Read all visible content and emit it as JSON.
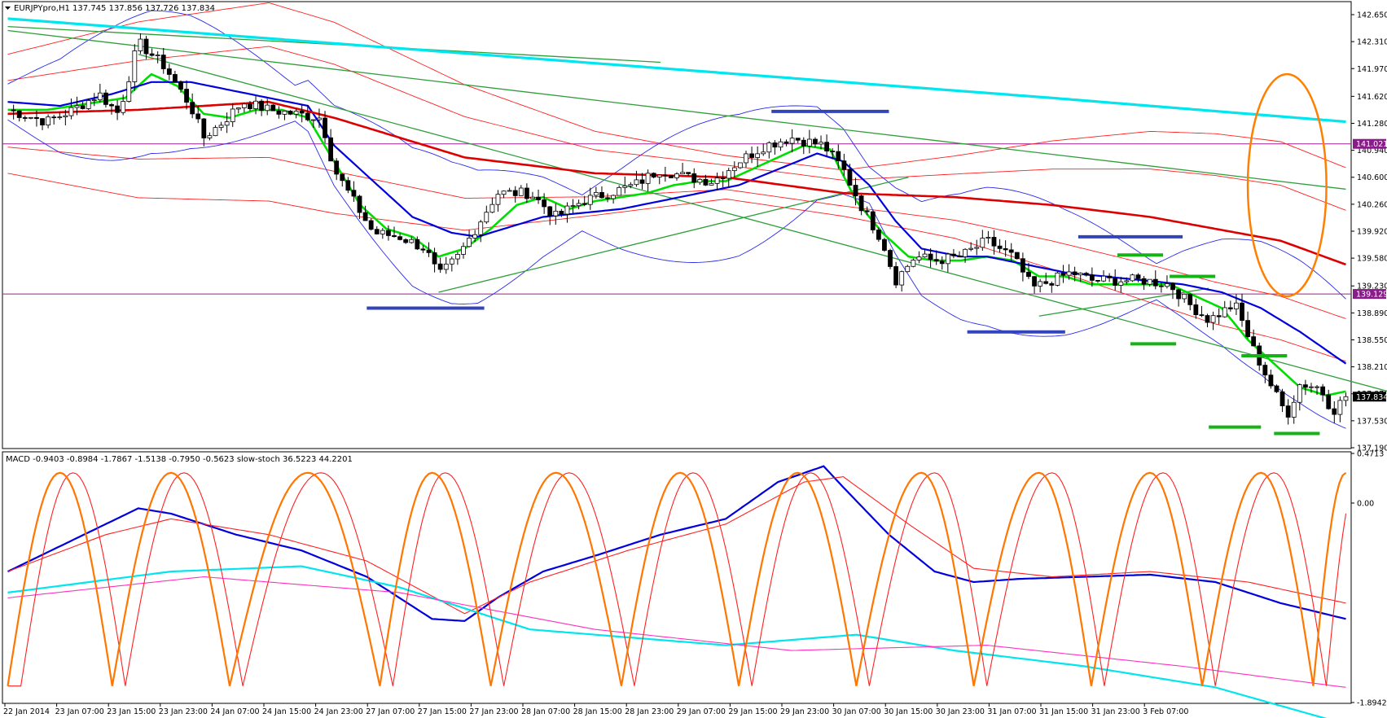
{
  "colors": {
    "background": "#ffffff",
    "bull_candle": "#ffffff",
    "bear_candle": "#000000",
    "ema_fast": "#00dd00",
    "ema_mid": "#0000dd",
    "ema_slow": "#dd0000",
    "ema_long": "#00e5ee",
    "bollinger": "#2a2aee",
    "envelope": "#ff2020",
    "trendline": "#2e9e3a",
    "hline": "#9b1f8f",
    "hline_badge": "#8b1a8b",
    "price_badge": "#000000",
    "support_marks": "#3344bb",
    "green_marks": "#15b315",
    "ellipse": "#ff8000",
    "macd_main": "#0000dd",
    "macd_signal": "#ff2020",
    "stoch_main": "#ff7700",
    "stoch_signal": "#ff2020",
    "slow_ma_cyan": "#00e5ee",
    "slow_ma_magenta": "#ff30c0"
  },
  "main_panel": {
    "header_text": "EURJPYpro,H1  137.745 137.856 137.726 137.834",
    "header_icon": "triangle-down-icon",
    "price_label": "137.834",
    "hlines": [
      {
        "value": 141.021,
        "label": "141.021"
      },
      {
        "value": 139.129,
        "label": "139.129"
      }
    ]
  },
  "indicator_panel": {
    "header_text": "MACD -0.9403 -0.8984 -1.7867 -1.5138 -0.7950 -0.5623  slow-stoch 36.5223 44.2201"
  },
  "chart_data": [
    {
      "type": "candlestick",
      "title": "EURJPYpro,H1",
      "ylim": [
        137.19,
        142.65
      ],
      "yticks": [
        "142.650",
        "142.310",
        "141.970",
        "141.620",
        "141.280",
        "140.940",
        "140.600",
        "140.260",
        "139.920",
        "139.580",
        "139.230",
        "138.890",
        "138.550",
        "138.210",
        "137.870",
        "137.530",
        "137.190"
      ],
      "x_tick_labels": [
        "22 Jan 2014",
        "23 Jan 07:00",
        "23 Jan 15:00",
        "23 Jan 23:00",
        "24 Jan 07:00",
        "24 Jan 15:00",
        "24 Jan 23:00",
        "27 Jan 07:00",
        "27 Jan 15:00",
        "27 Jan 23:00",
        "28 Jan 07:00",
        "28 Jan 15:00",
        "28 Jan 23:00",
        "29 Jan 07:00",
        "29 Jan 15:00",
        "29 Jan 23:00",
        "30 Jan 07:00",
        "30 Jan 15:00",
        "30 Jan 23:00",
        "31 Jan 07:00",
        "31 Jan 15:00",
        "31 Jan 23:00",
        "3 Feb 07:00"
      ],
      "close_path": [
        [
          0,
          141.45
        ],
        [
          6,
          141.3
        ],
        [
          10,
          141.45
        ],
        [
          14,
          141.65
        ],
        [
          17,
          141.4
        ],
        [
          20,
          142.3
        ],
        [
          24,
          142.0
        ],
        [
          28,
          141.5
        ],
        [
          30,
          141.1
        ],
        [
          33,
          141.3
        ],
        [
          36,
          141.55
        ],
        [
          40,
          141.45
        ],
        [
          44,
          141.4
        ],
        [
          48,
          141.35
        ],
        [
          50,
          140.7
        ],
        [
          53,
          140.3
        ],
        [
          56,
          139.9
        ],
        [
          60,
          139.85
        ],
        [
          64,
          139.7
        ],
        [
          66,
          139.35
        ],
        [
          69,
          139.6
        ],
        [
          72,
          140.0
        ],
        [
          75,
          140.4
        ],
        [
          80,
          140.4
        ],
        [
          84,
          140.1
        ],
        [
          88,
          140.3
        ],
        [
          92,
          140.4
        ],
        [
          96,
          140.5
        ],
        [
          100,
          140.7
        ],
        [
          104,
          140.6
        ],
        [
          108,
          140.55
        ],
        [
          112,
          140.8
        ],
        [
          116,
          141.0
        ],
        [
          120,
          141.1
        ],
        [
          125,
          141.0
        ],
        [
          128,
          140.7
        ],
        [
          131,
          140.2
        ],
        [
          134,
          139.8
        ],
        [
          136,
          139.3
        ],
        [
          139,
          139.6
        ],
        [
          142,
          139.55
        ],
        [
          146,
          139.6
        ],
        [
          150,
          139.8
        ],
        [
          154,
          139.6
        ],
        [
          157,
          139.2
        ],
        [
          160,
          139.3
        ],
        [
          163,
          139.4
        ],
        [
          166,
          139.3
        ],
        [
          170,
          139.3
        ],
        [
          174,
          139.3
        ],
        [
          178,
          139.25
        ],
        [
          181,
          139.0
        ],
        [
          184,
          138.8
        ],
        [
          188,
          139.0
        ],
        [
          191,
          138.4
        ],
        [
          194,
          137.9
        ],
        [
          196,
          137.6
        ],
        [
          198,
          138.0
        ],
        [
          201,
          137.95
        ],
        [
          203,
          137.65
        ],
        [
          205,
          137.834
        ]
      ],
      "series": [
        {
          "name": "ema_fast",
          "values": [
            [
              0,
              141.45
            ],
            [
              6,
              141.45
            ],
            [
              10,
              141.5
            ],
            [
              14,
              141.55
            ],
            [
              18,
              141.6
            ],
            [
              22,
              141.9
            ],
            [
              26,
              141.75
            ],
            [
              30,
              141.4
            ],
            [
              34,
              141.35
            ],
            [
              38,
              141.45
            ],
            [
              42,
              141.45
            ],
            [
              46,
              141.35
            ],
            [
              50,
              140.8
            ],
            [
              54,
              140.25
            ],
            [
              58,
              139.95
            ],
            [
              62,
              139.85
            ],
            [
              66,
              139.6
            ],
            [
              70,
              139.7
            ],
            [
              74,
              139.95
            ],
            [
              78,
              140.25
            ],
            [
              82,
              140.35
            ],
            [
              86,
              140.2
            ],
            [
              90,
              140.3
            ],
            [
              94,
              140.35
            ],
            [
              98,
              140.4
            ],
            [
              102,
              140.5
            ],
            [
              106,
              140.55
            ],
            [
              110,
              140.55
            ],
            [
              114,
              140.7
            ],
            [
              118,
              140.85
            ],
            [
              122,
              141.0
            ],
            [
              126,
              140.95
            ],
            [
              130,
              140.3
            ],
            [
              134,
              139.9
            ],
            [
              138,
              139.6
            ],
            [
              142,
              139.55
            ],
            [
              146,
              139.55
            ],
            [
              150,
              139.6
            ],
            [
              154,
              139.55
            ],
            [
              158,
              139.35
            ],
            [
              162,
              139.35
            ],
            [
              166,
              139.25
            ],
            [
              170,
              139.25
            ],
            [
              174,
              139.25
            ],
            [
              178,
              139.25
            ],
            [
              182,
              139.1
            ],
            [
              186,
              138.95
            ],
            [
              190,
              138.55
            ],
            [
              194,
              138.25
            ],
            [
              198,
              137.95
            ],
            [
              202,
              137.85
            ],
            [
              205,
              137.9
            ]
          ]
        },
        {
          "name": "ema_mid",
          "values": [
            [
              0,
              141.55
            ],
            [
              8,
              141.5
            ],
            [
              16,
              141.65
            ],
            [
              22,
              141.8
            ],
            [
              28,
              141.8
            ],
            [
              34,
              141.7
            ],
            [
              40,
              141.6
            ],
            [
              46,
              141.5
            ],
            [
              50,
              141.0
            ],
            [
              56,
              140.55
            ],
            [
              62,
              140.1
            ],
            [
              68,
              139.9
            ],
            [
              72,
              139.85
            ],
            [
              76,
              139.95
            ],
            [
              82,
              140.1
            ],
            [
              88,
              140.15
            ],
            [
              94,
              140.2
            ],
            [
              100,
              140.3
            ],
            [
              106,
              140.4
            ],
            [
              112,
              140.5
            ],
            [
              118,
              140.7
            ],
            [
              124,
              140.9
            ],
            [
              128,
              140.8
            ],
            [
              132,
              140.5
            ],
            [
              136,
              140.05
            ],
            [
              140,
              139.7
            ],
            [
              146,
              139.6
            ],
            [
              150,
              139.6
            ],
            [
              156,
              139.5
            ],
            [
              162,
              139.4
            ],
            [
              168,
              139.35
            ],
            [
              174,
              139.3
            ],
            [
              180,
              139.25
            ],
            [
              186,
              139.15
            ],
            [
              192,
              138.95
            ],
            [
              198,
              138.65
            ],
            [
              205,
              138.25
            ]
          ]
        },
        {
          "name": "ema_slow",
          "values": [
            [
              0,
              141.4
            ],
            [
              20,
              141.45
            ],
            [
              40,
              141.55
            ],
            [
              50,
              141.35
            ],
            [
              70,
              140.85
            ],
            [
              90,
              140.65
            ],
            [
              110,
              140.6
            ],
            [
              128,
              140.4
            ],
            [
              145,
              140.35
            ],
            [
              160,
              140.25
            ],
            [
              175,
              140.1
            ],
            [
              185,
              139.95
            ],
            [
              195,
              139.8
            ],
            [
              205,
              139.5
            ]
          ]
        },
        {
          "name": "ema_long",
          "values": [
            [
              0,
              142.6
            ],
            [
              40,
              142.35
            ],
            [
              80,
              142.1
            ],
            [
              120,
              141.85
            ],
            [
              160,
              141.6
            ],
            [
              205,
              141.3
            ]
          ]
        }
      ],
      "trendlines": [
        {
          "from": [
            0,
            142.5
          ],
          "to": [
            100,
            142.05
          ]
        },
        {
          "from": [
            0,
            142.45
          ],
          "to": [
            205,
            140.45
          ]
        },
        {
          "from": [
            20,
            142.15
          ],
          "to": [
            225,
            137.6
          ]
        },
        {
          "from": [
            66,
            139.15
          ],
          "to": [
            138,
            140.6
          ]
        },
        {
          "from": [
            158,
            138.85
          ],
          "to": [
            184,
            139.2
          ]
        }
      ],
      "blue_marks": [
        {
          "x": [
            55,
            73
          ],
          "y": 138.95
        },
        {
          "x": [
            117,
            135
          ],
          "y": 141.43
        },
        {
          "x": [
            147,
            162
          ],
          "y": 138.65
        },
        {
          "x": [
            164,
            180
          ],
          "y": 139.85
        }
      ],
      "green_marks": [
        {
          "x": [
            170,
            177
          ],
          "y": 139.62
        },
        {
          "x": [
            178,
            185
          ],
          "y": 139.35
        },
        {
          "x": [
            172,
            179
          ],
          "y": 138.5
        },
        {
          "x": [
            189,
            196
          ],
          "y": 138.35
        },
        {
          "x": [
            184,
            192
          ],
          "y": 137.45
        },
        {
          "x": [
            194,
            201
          ],
          "y": 137.37
        }
      ],
      "ellipse": {
        "cx": 196,
        "cy": 140.5,
        "rx": 6,
        "ry": 1.4
      }
    },
    {
      "type": "line",
      "title": "MACD",
      "ylim": [
        -1.8942,
        0.4713
      ],
      "yticks": [
        "0.4713",
        "0.00",
        "-1.8942"
      ],
      "series": [
        {
          "name": "MACD main",
          "values": [
            [
              0,
              -0.65
            ],
            [
              10,
              -0.35
            ],
            [
              20,
              -0.05
            ],
            [
              25,
              -0.1
            ],
            [
              35,
              -0.3
            ],
            [
              45,
              -0.45
            ],
            [
              55,
              -0.7
            ],
            [
              65,
              -1.1
            ],
            [
              70,
              -1.12
            ],
            [
              75,
              -0.9
            ],
            [
              82,
              -0.65
            ],
            [
              90,
              -0.5
            ],
            [
              100,
              -0.3
            ],
            [
              110,
              -0.15
            ],
            [
              118,
              0.2
            ],
            [
              125,
              0.35
            ],
            [
              128,
              0.15
            ],
            [
              135,
              -0.3
            ],
            [
              142,
              -0.65
            ],
            [
              148,
              -0.75
            ],
            [
              155,
              -0.72
            ],
            [
              165,
              -0.7
            ],
            [
              175,
              -0.68
            ],
            [
              185,
              -0.75
            ],
            [
              195,
              -0.95
            ],
            [
              205,
              -1.1
            ]
          ]
        },
        {
          "name": "MACD signal",
          "values": [
            [
              0,
              -0.65
            ],
            [
              15,
              -0.3
            ],
            [
              25,
              -0.15
            ],
            [
              40,
              -0.3
            ],
            [
              55,
              -0.55
            ],
            [
              70,
              -1.05
            ],
            [
              80,
              -0.75
            ],
            [
              95,
              -0.45
            ],
            [
              110,
              -0.2
            ],
            [
              122,
              0.2
            ],
            [
              128,
              0.25
            ],
            [
              138,
              -0.2
            ],
            [
              148,
              -0.62
            ],
            [
              160,
              -0.7
            ],
            [
              175,
              -0.65
            ],
            [
              190,
              -0.75
            ],
            [
              205,
              -0.95
            ]
          ]
        },
        {
          "name": "slow MA cyan",
          "values": [
            [
              0,
              -0.85
            ],
            [
              25,
              -0.65
            ],
            [
              45,
              -0.6
            ],
            [
              60,
              -0.8
            ],
            [
              80,
              -1.2
            ],
            [
              110,
              -1.35
            ],
            [
              130,
              -1.25
            ],
            [
              145,
              -1.4
            ],
            [
              165,
              -1.55
            ],
            [
              185,
              -1.75
            ],
            [
              205,
              -2.1
            ]
          ]
        },
        {
          "name": "slow MA magenta",
          "values": [
            [
              0,
              -0.9
            ],
            [
              30,
              -0.7
            ],
            [
              60,
              -0.85
            ],
            [
              90,
              -1.2
            ],
            [
              120,
              -1.4
            ],
            [
              150,
              -1.35
            ],
            [
              180,
              -1.55
            ],
            [
              205,
              -1.75
            ]
          ]
        }
      ]
    }
  ]
}
